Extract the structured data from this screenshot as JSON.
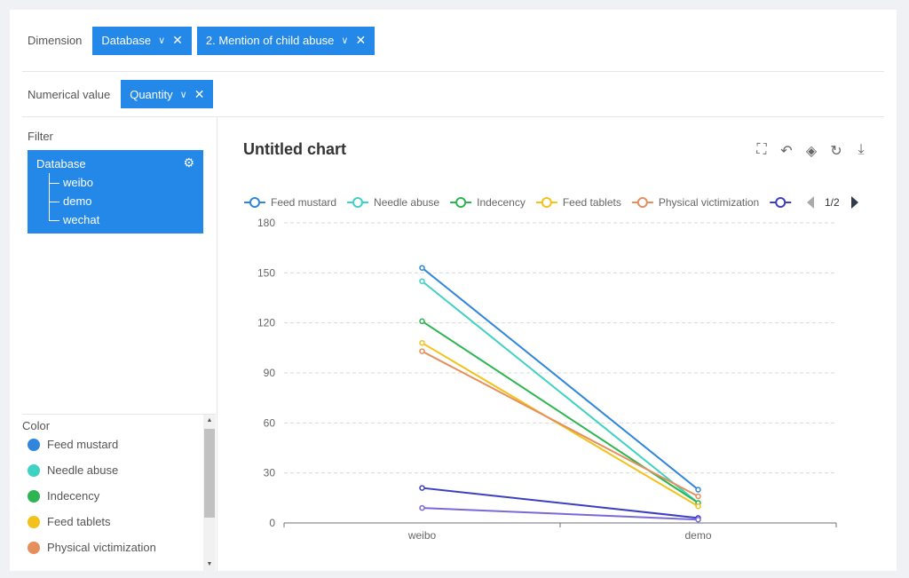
{
  "dimension": {
    "label": "Dimension",
    "chips": [
      {
        "label": "Database"
      },
      {
        "label": "2. Mention of child abuse"
      }
    ]
  },
  "numerical": {
    "label": "Numerical value",
    "chips": [
      {
        "label": "Quantity"
      }
    ]
  },
  "filter": {
    "label": "Filter",
    "root": "Database",
    "items": [
      "weibo",
      "demo",
      "wechat"
    ]
  },
  "color_panel": {
    "title": "Color",
    "items": [
      {
        "label": "Feed mustard",
        "color": "#2f86dc"
      },
      {
        "label": "Needle abuse",
        "color": "#3fd1c4"
      },
      {
        "label": "Indecency",
        "color": "#2db552"
      },
      {
        "label": "Feed tablets",
        "color": "#f2c21b"
      },
      {
        "label": "Physical victimization",
        "color": "#e58f5c"
      }
    ]
  },
  "chart_title": "Untitled chart",
  "chart_data": {
    "type": "line",
    "categories": [
      "weibo",
      "demo"
    ],
    "ylim": [
      0,
      180
    ],
    "yticks": [
      0,
      30,
      60,
      90,
      120,
      150,
      180
    ],
    "grid": true,
    "legend_position": "top",
    "legend_page": "1/2",
    "series": [
      {
        "name": "Feed mustard",
        "color": "#2f86dc",
        "values": [
          153,
          20
        ]
      },
      {
        "name": "Needle abuse",
        "color": "#3fd1c4",
        "values": [
          145,
          12
        ]
      },
      {
        "name": "Indecency",
        "color": "#2db552",
        "values": [
          121,
          12
        ]
      },
      {
        "name": "Feed tablets",
        "color": "#f2c21b",
        "values": [
          108,
          10
        ]
      },
      {
        "name": "Physical victimization",
        "color": "#e58f5c",
        "values": [
          103,
          16
        ]
      },
      {
        "name": "",
        "color": "#3d3fc2",
        "values": [
          21,
          3
        ]
      },
      {
        "name": "",
        "color": "#7a6ad8",
        "values": [
          9,
          2
        ]
      }
    ]
  }
}
